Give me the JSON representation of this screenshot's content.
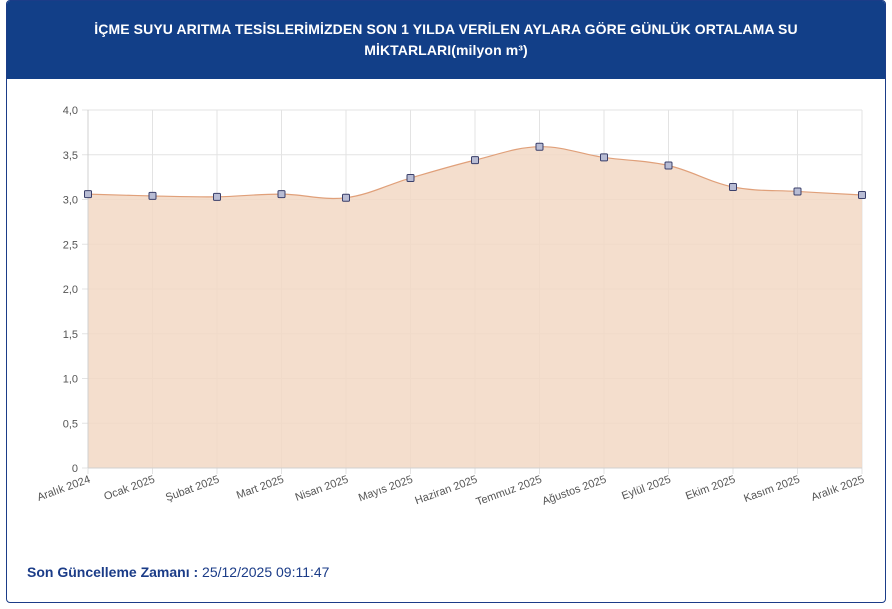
{
  "header": {
    "title": "İÇME SUYU ARITMA TESİSLERİMİZDEN SON 1 YILDA VERİLEN AYLARA GÖRE GÜNLÜK ORTALAMA SU MİKTARLARI(milyon m³)"
  },
  "footer": {
    "label": "Son Güncelleme Zamanı :",
    "value": "25/12/2025 09:11:47"
  },
  "colors": {
    "header_bg": "#123f88",
    "area_fill": "#f2d8c4",
    "line": "#e0a07a",
    "marker_fill": "#b8bcd4",
    "marker_stroke": "#3a3f6a",
    "footer_text": "#1b3c88"
  },
  "chart_data": {
    "type": "area",
    "title": "",
    "xlabel": "",
    "ylabel": "",
    "categories": [
      "Aralık 2024",
      "Ocak 2025",
      "Şubat 2025",
      "Mart 2025",
      "Nisan 2025",
      "Mayıs 2025",
      "Haziran 2025",
      "Temmuz 2025",
      "Ağustos 2025",
      "Eylül 2025",
      "Ekim 2025",
      "Kasım 2025",
      "Aralık 2025"
    ],
    "values": [
      3.06,
      3.04,
      3.03,
      3.06,
      3.02,
      3.24,
      3.44,
      3.59,
      3.47,
      3.38,
      3.14,
      3.09,
      3.05
    ],
    "ylim": [
      0,
      4
    ],
    "yticks": [
      "0",
      "0,5",
      "1,0",
      "1,5",
      "2,0",
      "2,5",
      "3,0",
      "3,5",
      "4,0"
    ],
    "grid": true,
    "legend": "none"
  }
}
